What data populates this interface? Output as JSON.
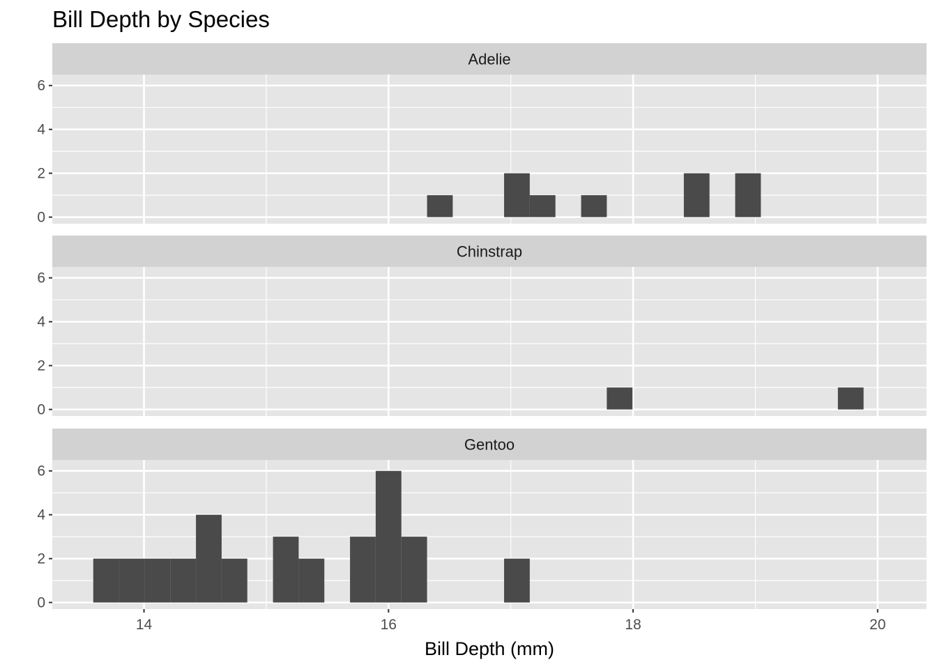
{
  "chart_data": {
    "type": "bar",
    "title": "Bill Depth by Species",
    "xlabel": "Bill Depth (mm)",
    "ylabel": "",
    "xlim": [
      13.25,
      20.4
    ],
    "ylim": [
      0,
      6.5
    ],
    "x_ticks": [
      14,
      16,
      18,
      20
    ],
    "y_ticks": [
      0,
      2,
      4,
      6
    ],
    "bin_width": 0.21,
    "grid": true,
    "colors": {
      "bar": "#4a4a4a",
      "panel": "#e5e5e5",
      "strip": "#d2d2d2",
      "grid": "#ffffff"
    },
    "facets": [
      {
        "label": "Adelie",
        "bins": [
          {
            "x": 16.42,
            "count": 1
          },
          {
            "x": 17.05,
            "count": 2
          },
          {
            "x": 17.26,
            "count": 1
          },
          {
            "x": 17.68,
            "count": 1
          },
          {
            "x": 18.52,
            "count": 2
          },
          {
            "x": 18.94,
            "count": 2
          }
        ]
      },
      {
        "label": "Chinstrap",
        "bins": [
          {
            "x": 17.89,
            "count": 1
          },
          {
            "x": 19.78,
            "count": 1
          }
        ]
      },
      {
        "label": "Gentoo",
        "bins": [
          {
            "x": 13.69,
            "count": 2
          },
          {
            "x": 13.9,
            "count": 2
          },
          {
            "x": 14.11,
            "count": 2
          },
          {
            "x": 14.32,
            "count": 2
          },
          {
            "x": 14.53,
            "count": 4
          },
          {
            "x": 14.74,
            "count": 2
          },
          {
            "x": 15.16,
            "count": 3
          },
          {
            "x": 15.37,
            "count": 2
          },
          {
            "x": 15.79,
            "count": 3
          },
          {
            "x": 16.0,
            "count": 6
          },
          {
            "x": 16.21,
            "count": 3
          },
          {
            "x": 17.05,
            "count": 2
          }
        ]
      }
    ]
  }
}
